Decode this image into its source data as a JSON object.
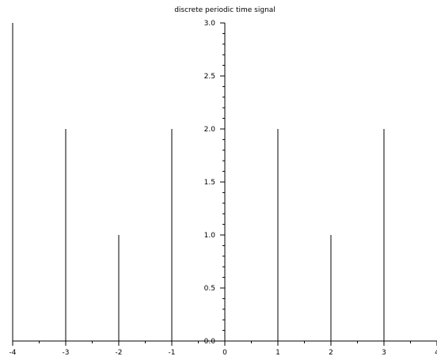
{
  "chart_data": {
    "type": "stem",
    "title": "discrete periodic time signal",
    "xlabel": "",
    "ylabel": "",
    "x": [
      -4,
      -3,
      -2,
      -1,
      0,
      1,
      2,
      3
    ],
    "values": [
      3,
      2,
      1,
      2,
      0,
      2,
      1,
      2
    ],
    "xlim": [
      -4,
      4
    ],
    "ylim": [
      0,
      3
    ],
    "xticks": [
      "-4",
      "-3",
      "-2",
      "-1",
      "0",
      "1",
      "2",
      "3",
      "4"
    ],
    "yticks": [
      "0.0",
      "0.5",
      "1.0",
      "1.5",
      "2.0",
      "2.5",
      "3.0"
    ],
    "grid": false,
    "line_color": "#000000"
  }
}
